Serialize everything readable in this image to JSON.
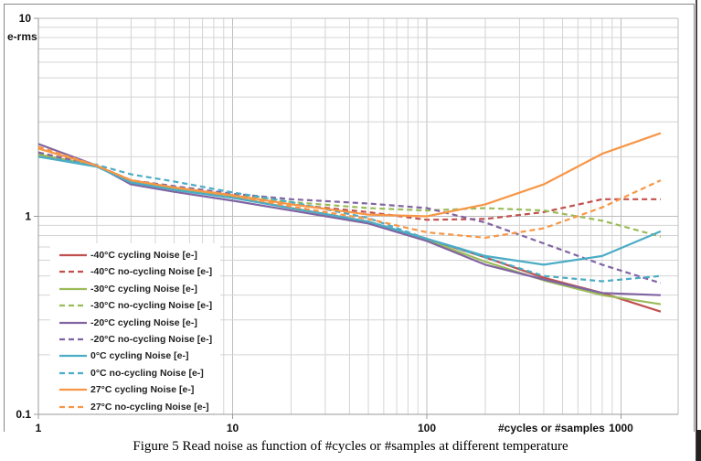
{
  "chart_data": {
    "type": "line",
    "title": "",
    "xlabel": "#cycles or #samples",
    "ylabel": "e-rms",
    "xscale": "log",
    "yscale": "log",
    "xlim": [
      1,
      2000
    ],
    "ylim": [
      0.1,
      10
    ],
    "x_ticks": [
      "1",
      "10",
      "100",
      "1000"
    ],
    "y_ticks": [
      "0.1",
      "1",
      "10"
    ],
    "grid": true,
    "legend_position": "bottom-left",
    "x": [
      1,
      2,
      3,
      5,
      10,
      20,
      50,
      100,
      200,
      400,
      800,
      1600
    ],
    "series": [
      {
        "name": "-40°C cycling Noise [e-]",
        "color": "#C0504D",
        "dash": false,
        "values": [
          2.05,
          1.8,
          1.5,
          1.38,
          1.25,
          1.1,
          0.94,
          0.77,
          0.62,
          0.49,
          0.41,
          0.33
        ]
      },
      {
        "name": "-40°C no-cycling Noise [e-]",
        "color": "#C0504D",
        "dash": true,
        "values": [
          2.1,
          1.8,
          1.52,
          1.4,
          1.28,
          1.15,
          1.05,
          0.96,
          0.97,
          1.05,
          1.22,
          1.22
        ]
      },
      {
        "name": "-30°C cycling Noise [e-]",
        "color": "#9BBB59",
        "dash": false,
        "values": [
          2.05,
          1.8,
          1.5,
          1.38,
          1.25,
          1.1,
          0.94,
          0.76,
          0.59,
          0.475,
          0.4,
          0.36
        ]
      },
      {
        "name": "-30°C no-cycling Noise [e-]",
        "color": "#9BBB59",
        "dash": true,
        "values": [
          2.1,
          1.8,
          1.52,
          1.4,
          1.28,
          1.18,
          1.1,
          1.07,
          1.1,
          1.07,
          0.95,
          0.79
        ]
      },
      {
        "name": "-20°C cycling Noise [e-]",
        "color": "#8064A2",
        "dash": false,
        "values": [
          2.32,
          1.8,
          1.45,
          1.33,
          1.2,
          1.07,
          0.92,
          0.75,
          0.57,
          0.48,
          0.41,
          0.4
        ]
      },
      {
        "name": "-20°C no-cycling Noise [e-]",
        "color": "#8064A2",
        "dash": true,
        "values": [
          2.1,
          1.8,
          1.52,
          1.42,
          1.3,
          1.22,
          1.16,
          1.1,
          0.93,
          0.73,
          0.57,
          0.46
        ]
      },
      {
        "name": "0°C cycling Noise [e-]",
        "color": "#4BACC6",
        "dash": false,
        "values": [
          2.0,
          1.78,
          1.48,
          1.36,
          1.24,
          1.1,
          0.94,
          0.77,
          0.63,
          0.57,
          0.63,
          0.84
        ]
      },
      {
        "name": "0°C no-cycling Noise [e-]",
        "color": "#4BACC6",
        "dash": true,
        "values": [
          2.0,
          1.82,
          1.63,
          1.5,
          1.32,
          1.18,
          0.98,
          0.77,
          0.62,
          0.5,
          0.47,
          0.5
        ]
      },
      {
        "name": "27°C cycling Noise [e-]",
        "color": "#F79646",
        "dash": false,
        "values": [
          2.2,
          1.8,
          1.52,
          1.4,
          1.28,
          1.15,
          1.02,
          1.0,
          1.15,
          1.45,
          2.07,
          2.63
        ]
      },
      {
        "name": "27°C no-cycling Noise [e-]",
        "color": "#F79646",
        "dash": true,
        "values": [
          2.25,
          1.8,
          1.52,
          1.4,
          1.27,
          1.12,
          0.97,
          0.83,
          0.78,
          0.87,
          1.11,
          1.52
        ]
      }
    ]
  },
  "caption": "Figure 5 Read noise as function of #cycles or #samples at different temperature"
}
